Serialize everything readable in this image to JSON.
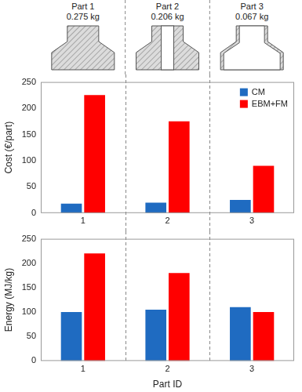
{
  "parts": [
    {
      "label": "Part 1",
      "mass": "0.275 kg"
    },
    {
      "label": "Part 2",
      "mass": "0.206 kg"
    },
    {
      "label": "Part 3",
      "mass": "0.067 kg"
    }
  ],
  "chart_data": [
    {
      "type": "bar",
      "categories": [
        "1",
        "2",
        "3"
      ],
      "ylabel": "Cost (€/part)",
      "ylim": [
        0,
        250
      ],
      "yticks": [
        0,
        50,
        100,
        150,
        200,
        250
      ],
      "grid": false,
      "legend": "top-right",
      "series": [
        {
          "name": "CM",
          "color": "#1f6bc1",
          "values": [
            18,
            20,
            25
          ]
        },
        {
          "name": "EBM+FM",
          "color": "#ff0000",
          "values": [
            225,
            175,
            90
          ]
        }
      ]
    },
    {
      "type": "bar",
      "categories": [
        "1",
        "2",
        "3"
      ],
      "ylabel": "Energy (MJ/kg)",
      "xlabel": "Part ID",
      "ylim": [
        0,
        250
      ],
      "yticks": [
        0,
        50,
        100,
        150,
        200,
        250
      ],
      "grid": false,
      "series": [
        {
          "name": "CM",
          "color": "#1f6bc1",
          "values": [
            100,
            105,
            110
          ]
        },
        {
          "name": "EBM+FM",
          "color": "#ff0000",
          "values": [
            220,
            180,
            100
          ]
        }
      ]
    }
  ]
}
